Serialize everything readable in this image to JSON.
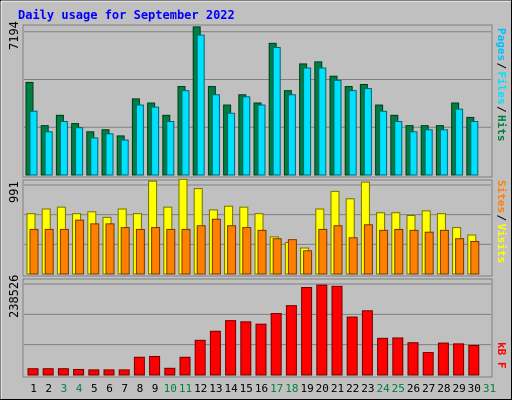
{
  "title": "Daily usage for September 2022",
  "colors": {
    "background": "#c0c0c0",
    "title": "#0000ff",
    "hits": "#008040",
    "files": "#00e0ff",
    "pages": "#00c0ff",
    "visits": "#ffff00",
    "sites": "#ff8000",
    "kbytes": "#ff0000",
    "weekend_day": "#008040",
    "weekday": "#000000",
    "legend_sep": "#000000"
  },
  "chart_data": [
    {
      "type": "bar",
      "panel": "hits-files-pages",
      "ylim": [
        0,
        7194
      ],
      "max_label": "7194",
      "legend": [
        "Pages",
        "Files",
        "Hits"
      ],
      "legend_separator": "/",
      "categories": [
        "1",
        "2",
        "3",
        "4",
        "5",
        "6",
        "7",
        "8",
        "9",
        "10",
        "11",
        "12",
        "13",
        "14",
        "15",
        "16",
        "17",
        "18",
        "19",
        "20",
        "21",
        "22",
        "23",
        "24",
        "25",
        "26",
        "27",
        "28",
        "29",
        "30",
        "31"
      ],
      "series": [
        {
          "name": "Hits",
          "values": [
            4500,
            2400,
            2900,
            2500,
            2100,
            2200,
            1900,
            3700,
            3500,
            2900,
            4300,
            7200,
            4300,
            3400,
            3900,
            3500,
            6400,
            4100,
            5400,
            5500,
            4800,
            4300,
            4400,
            3400,
            2900,
            2400,
            2400,
            2400,
            3500,
            2800,
            null
          ]
        },
        {
          "name": "Files",
          "values": [
            3100,
            2100,
            2600,
            2300,
            1800,
            2000,
            1700,
            3400,
            3300,
            2600,
            4100,
            6800,
            3900,
            3000,
            3800,
            3400,
            6200,
            3900,
            5200,
            5200,
            4600,
            4100,
            4200,
            3100,
            2600,
            2100,
            2200,
            2200,
            3200,
            2600,
            null
          ]
        },
        {
          "name": "Pages",
          "values": [
            null,
            null,
            null,
            null,
            null,
            null,
            null,
            null,
            null,
            null,
            null,
            null,
            null,
            null,
            null,
            null,
            null,
            null,
            null,
            null,
            null,
            null,
            null,
            null,
            null,
            null,
            null,
            null,
            null,
            null,
            null
          ]
        }
      ]
    },
    {
      "type": "bar",
      "panel": "visits-sites",
      "ylim": [
        0,
        991
      ],
      "max_label": "991",
      "legend": [
        "Sites",
        "Visits"
      ],
      "legend_separator": "/",
      "categories": [
        "1",
        "2",
        "3",
        "4",
        "5",
        "6",
        "7",
        "8",
        "9",
        "10",
        "11",
        "12",
        "13",
        "14",
        "15",
        "16",
        "17",
        "18",
        "19",
        "20",
        "21",
        "22",
        "23",
        "24",
        "25",
        "26",
        "27",
        "28",
        "29",
        "30",
        "31"
      ],
      "series": [
        {
          "name": "Visits",
          "values": [
            650,
            700,
            720,
            650,
            670,
            610,
            700,
            650,
            1000,
            720,
            1020,
            920,
            690,
            730,
            720,
            650,
            400,
            340,
            280,
            700,
            890,
            810,
            990,
            660,
            660,
            630,
            680,
            650,
            500,
            420,
            null
          ]
        },
        {
          "name": "Sites",
          "values": [
            480,
            480,
            480,
            580,
            540,
            540,
            500,
            480,
            500,
            480,
            480,
            520,
            590,
            520,
            500,
            470,
            380,
            370,
            250,
            480,
            520,
            390,
            530,
            470,
            480,
            470,
            450,
            470,
            380,
            350,
            null
          ]
        }
      ]
    },
    {
      "type": "bar",
      "panel": "kbytes",
      "ylim": [
        0,
        238526
      ],
      "max_label": "238526",
      "legend": [
        "kB F"
      ],
      "categories": [
        "1",
        "2",
        "3",
        "4",
        "5",
        "6",
        "7",
        "8",
        "9",
        "10",
        "11",
        "12",
        "13",
        "14",
        "15",
        "16",
        "17",
        "18",
        "19",
        "20",
        "21",
        "22",
        "23",
        "24",
        "25",
        "26",
        "27",
        "28",
        "29",
        "30",
        "31"
      ],
      "series": [
        {
          "name": "kB F",
          "values": [
            16000,
            16000,
            16000,
            14000,
            13000,
            13000,
            13000,
            45000,
            47000,
            17000,
            45000,
            88000,
            111000,
            138000,
            135000,
            129000,
            156000,
            176000,
            222000,
            228000,
            225000,
            147000,
            163000,
            93000,
            94000,
            82000,
            57000,
            81000,
            79000,
            75000,
            null
          ]
        }
      ]
    }
  ],
  "x_axis": {
    "days": [
      "1",
      "2",
      "3",
      "4",
      "5",
      "6",
      "7",
      "8",
      "9",
      "10",
      "11",
      "12",
      "13",
      "14",
      "15",
      "16",
      "17",
      "18",
      "19",
      "20",
      "21",
      "22",
      "23",
      "24",
      "25",
      "26",
      "27",
      "28",
      "29",
      "30",
      "31"
    ],
    "weekend": [
      3,
      4,
      10,
      11,
      17,
      18,
      24,
      25,
      31
    ]
  }
}
